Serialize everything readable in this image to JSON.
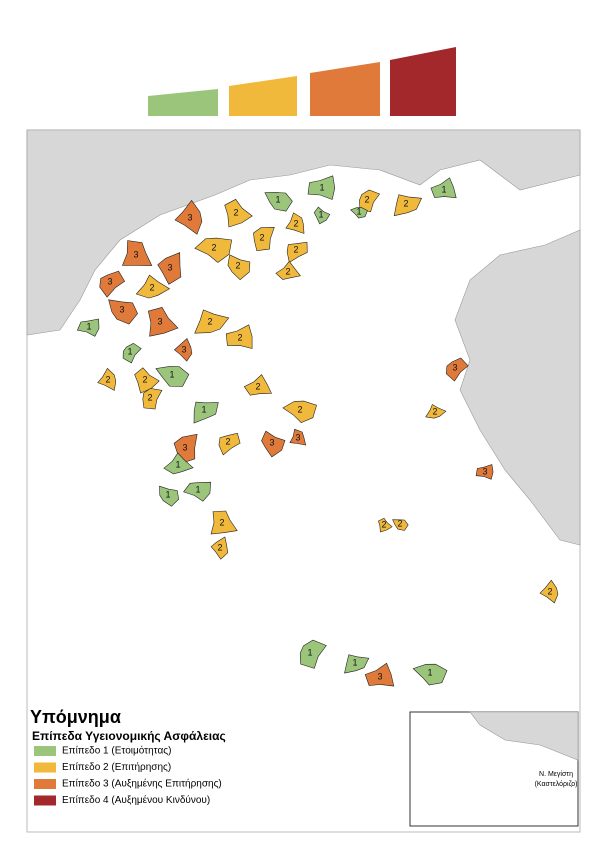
{
  "legend_title": "Υπόμνημα",
  "legend_subtitle": "Επίπεδα Υγειονομικής Ασφάλειας",
  "levels": [
    {
      "label": "Επίπεδο 1 (Ετοιμότητας)",
      "color": "#9cc57c"
    },
    {
      "label": "Επίπεδο 2 (Επιτήρησης)",
      "color": "#f0b93c"
    },
    {
      "label": "Επίπεδο 3 (Αυξημένης Επιτήρησης)",
      "color": "#e07a3a"
    },
    {
      "label": "Επίπεδο 4 (Αυξημένου Κινδύνου)",
      "color": "#a3282b"
    }
  ],
  "regions": [
    1,
    1,
    2,
    3,
    2,
    2,
    1,
    1,
    1,
    2,
    2,
    2,
    2,
    2,
    2,
    3,
    3,
    3,
    2,
    1,
    3,
    3,
    3,
    1,
    2,
    2,
    1,
    2,
    2,
    2,
    1,
    2,
    2,
    3,
    3,
    3,
    2,
    1,
    1,
    1,
    2,
    2,
    3,
    2,
    3,
    2,
    2,
    2,
    1,
    1,
    3,
    1,
    2
  ],
  "inset_label": "Ν. Μεγίστη",
  "inset_sublabel": "(Καστελόριζο)"
}
